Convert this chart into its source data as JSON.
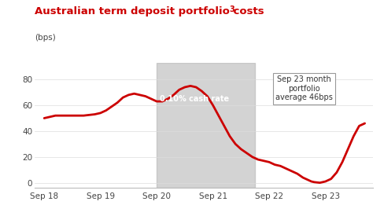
{
  "title": "Australian term deposit portfolio costs",
  "title_superscript": "3",
  "ylabel": "(bps)",
  "title_color": "#cc0000",
  "ylabel_color": "#444444",
  "line_color": "#cc0000",
  "line_width": 2.0,
  "background_color": "#ffffff",
  "shaded_region": {
    "x_start": 2020.0,
    "x_end": 2021.75,
    "color": "#b0b0b0",
    "alpha": 0.55
  },
  "annotation_box": "Sep 23 month\nportfolio\naverage 46bps",
  "xlim": [
    2017.83,
    2023.85
  ],
  "ylim": [
    -4,
    93
  ],
  "yticks": [
    0,
    20,
    40,
    60,
    80
  ],
  "xtick_labels": [
    "Sep 18",
    "Sep 19",
    "Sep 20",
    "Sep 21",
    "Sep 22",
    "Sep 23"
  ],
  "xtick_positions": [
    2018.0,
    2019.0,
    2020.0,
    2021.0,
    2022.0,
    2023.0
  ],
  "x": [
    2018.0,
    2018.1,
    2018.2,
    2018.3,
    2018.5,
    2018.7,
    2018.9,
    2019.0,
    2019.1,
    2019.2,
    2019.3,
    2019.4,
    2019.5,
    2019.6,
    2019.7,
    2019.8,
    2019.9,
    2020.0,
    2020.1,
    2020.2,
    2020.3,
    2020.4,
    2020.5,
    2020.6,
    2020.7,
    2020.8,
    2020.9,
    2021.0,
    2021.1,
    2021.2,
    2021.3,
    2021.4,
    2021.5,
    2021.6,
    2021.7,
    2021.75,
    2021.8,
    2021.9,
    2022.0,
    2022.1,
    2022.2,
    2022.3,
    2022.4,
    2022.5,
    2022.6,
    2022.7,
    2022.75,
    2022.8,
    2022.9,
    2023.0,
    2023.1,
    2023.2,
    2023.3,
    2023.4,
    2023.5,
    2023.6,
    2023.7
  ],
  "y": [
    50,
    51,
    52,
    52,
    52,
    52,
    53,
    54,
    56,
    59,
    62,
    66,
    68,
    69,
    68,
    67,
    65,
    63,
    63,
    65,
    68,
    72,
    74,
    75,
    74,
    71,
    67,
    60,
    52,
    44,
    36,
    30,
    26,
    23,
    20,
    19,
    18,
    17,
    16,
    14,
    13,
    11,
    9,
    7,
    4,
    2,
    1,
    0.5,
    0,
    1,
    3,
    8,
    16,
    26,
    36,
    44,
    46
  ]
}
